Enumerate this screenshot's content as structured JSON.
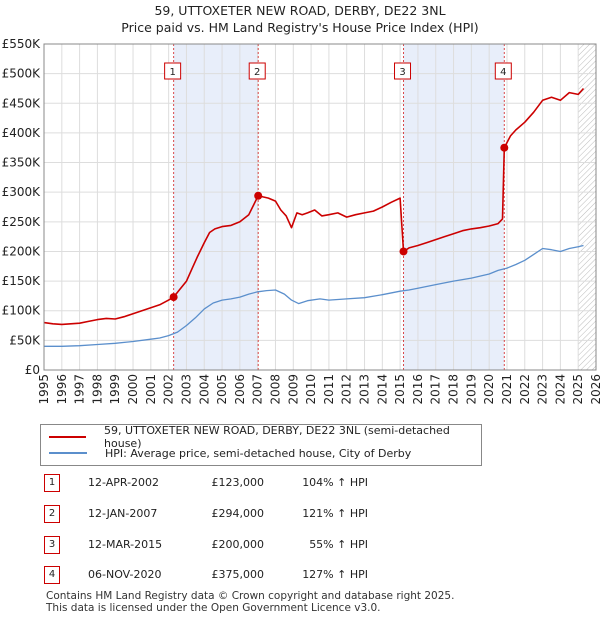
{
  "title_line1": "59, UTTOXETER NEW ROAD, DERBY, DE22 3NL",
  "title_line2": "Price paid vs. HM Land Registry's House Price Index (HPI)",
  "colors": {
    "price": "#cc0000",
    "hpi": "#5b8fcc",
    "shade": "#e8eefa",
    "grid": "#dddddd",
    "marker_border": "#cc0000"
  },
  "chart_data": {
    "type": "line",
    "xlim": [
      1995,
      2026
    ],
    "ylim": [
      0,
      550000
    ],
    "ytick_labels": [
      "£0",
      "£50K",
      "£100K",
      "£150K",
      "£200K",
      "£250K",
      "£300K",
      "£350K",
      "£400K",
      "£450K",
      "£500K",
      "£550K"
    ],
    "ytick_values": [
      0,
      50000,
      100000,
      150000,
      200000,
      250000,
      300000,
      350000,
      400000,
      450000,
      500000,
      550000
    ],
    "xtick_labels": [
      "1995",
      "1996",
      "1997",
      "1998",
      "1999",
      "2000",
      "2001",
      "2002",
      "2003",
      "2004",
      "2005",
      "2006",
      "2007",
      "2008",
      "2009",
      "2010",
      "2011",
      "2012",
      "2013",
      "2014",
      "2015",
      "2016",
      "2017",
      "2018",
      "2019",
      "2020",
      "2021",
      "2022",
      "2023",
      "2024",
      "2025",
      "2026"
    ],
    "series": [
      {
        "name": "59, UTTOXETER NEW ROAD, DERBY, DE22 3NL (semi-detached house)",
        "color": "#cc0000",
        "x": [
          1995.0,
          1995.5,
          1996.0,
          1996.5,
          1997.0,
          1997.5,
          1998.0,
          1998.5,
          1999.0,
          1999.5,
          2000.0,
          2000.5,
          2001.0,
          2001.5,
          2002.0,
          2002.28,
          2002.6,
          2003.0,
          2003.3,
          2003.6,
          2004.0,
          2004.3,
          2004.6,
          2005.0,
          2005.5,
          2006.0,
          2006.5,
          2007.03,
          2007.3,
          2007.6,
          2008.0,
          2008.3,
          2008.6,
          2008.9,
          2009.2,
          2009.5,
          2009.8,
          2010.2,
          2010.6,
          2011.0,
          2011.5,
          2012.0,
          2012.5,
          2013.0,
          2013.5,
          2014.0,
          2014.5,
          2015.0,
          2015.19,
          2015.5,
          2016.0,
          2016.5,
          2017.0,
          2017.5,
          2018.0,
          2018.5,
          2019.0,
          2019.5,
          2020.0,
          2020.5,
          2020.75,
          2020.85,
          2021.2,
          2021.5,
          2022.0,
          2022.5,
          2023.0,
          2023.5,
          2024.0,
          2024.5,
          2025.0,
          2025.3
        ],
        "values": [
          80000,
          78000,
          77000,
          78000,
          79000,
          82000,
          85000,
          87000,
          86000,
          90000,
          95000,
          100000,
          105000,
          110000,
          118000,
          123000,
          135000,
          150000,
          170000,
          190000,
          215000,
          232000,
          238000,
          242000,
          244000,
          250000,
          262000,
          294000,
          292000,
          290000,
          285000,
          270000,
          260000,
          240000,
          265000,
          262000,
          265000,
          270000,
          260000,
          262000,
          265000,
          258000,
          262000,
          265000,
          268000,
          275000,
          283000,
          290000,
          200000,
          206000,
          210000,
          215000,
          220000,
          225000,
          230000,
          235000,
          238000,
          240000,
          243000,
          247000,
          255000,
          375000,
          395000,
          405000,
          418000,
          435000,
          455000,
          460000,
          455000,
          468000,
          465000,
          475000
        ]
      },
      {
        "name": "HPI: Average price, semi-detached house, City of Derby",
        "color": "#5b8fcc",
        "x": [
          1995.0,
          1996.0,
          1997.0,
          1998.0,
          1999.0,
          2000.0,
          2001.0,
          2001.5,
          2002.0,
          2002.5,
          2003.0,
          2003.5,
          2004.0,
          2004.5,
          2005.0,
          2005.5,
          2006.0,
          2006.5,
          2007.0,
          2007.5,
          2008.0,
          2008.5,
          2008.9,
          2009.3,
          2009.8,
          2010.5,
          2011.0,
          2012.0,
          2013.0,
          2014.0,
          2015.0,
          2015.5,
          2016.0,
          2017.0,
          2018.0,
          2019.0,
          2020.0,
          2020.5,
          2021.0,
          2021.5,
          2022.0,
          2022.5,
          2023.0,
          2023.5,
          2024.0,
          2024.5,
          2025.0,
          2025.3
        ],
        "values": [
          40000,
          40000,
          41000,
          43000,
          45000,
          48000,
          52000,
          54000,
          58000,
          64000,
          75000,
          88000,
          103000,
          113000,
          118000,
          120000,
          123000,
          128000,
          132000,
          134000,
          135000,
          128000,
          118000,
          112000,
          117000,
          120000,
          118000,
          120000,
          122000,
          127000,
          133000,
          135000,
          138000,
          144000,
          150000,
          155000,
          162000,
          168000,
          172000,
          178000,
          185000,
          195000,
          205000,
          203000,
          200000,
          205000,
          208000,
          210000
        ]
      }
    ],
    "transactions": [
      {
        "num": "1",
        "x": 2002.28,
        "value": 123000,
        "date": "12-APR-2002",
        "price": "£123,000",
        "pct": "104% ↑ HPI"
      },
      {
        "num": "2",
        "x": 2007.03,
        "value": 294000,
        "date": "12-JAN-2007",
        "price": "£294,000",
        "pct": "121% ↑ HPI"
      },
      {
        "num": "3",
        "x": 2015.19,
        "value": 200000,
        "date": "12-MAR-2015",
        "price": "£200,000",
        "pct": "55% ↑ HPI"
      },
      {
        "num": "4",
        "x": 2020.85,
        "value": 375000,
        "date": "06-NOV-2020",
        "price": "£375,000",
        "pct": "127% ↑ HPI"
      }
    ],
    "shaded_ranges": [
      [
        2002.28,
        2007.03
      ],
      [
        2015.19,
        2020.85
      ]
    ],
    "future_hatch_from": 2025.0
  },
  "legend": {
    "price_label": "59, UTTOXETER NEW ROAD, DERBY, DE22 3NL (semi-detached house)",
    "hpi_label": "HPI: Average price, semi-detached house, City of Derby"
  },
  "footer": {
    "line1": "Contains HM Land Registry data © Crown copyright and database right 2025.",
    "line2": "This data is licensed under the Open Government Licence v3.0."
  }
}
